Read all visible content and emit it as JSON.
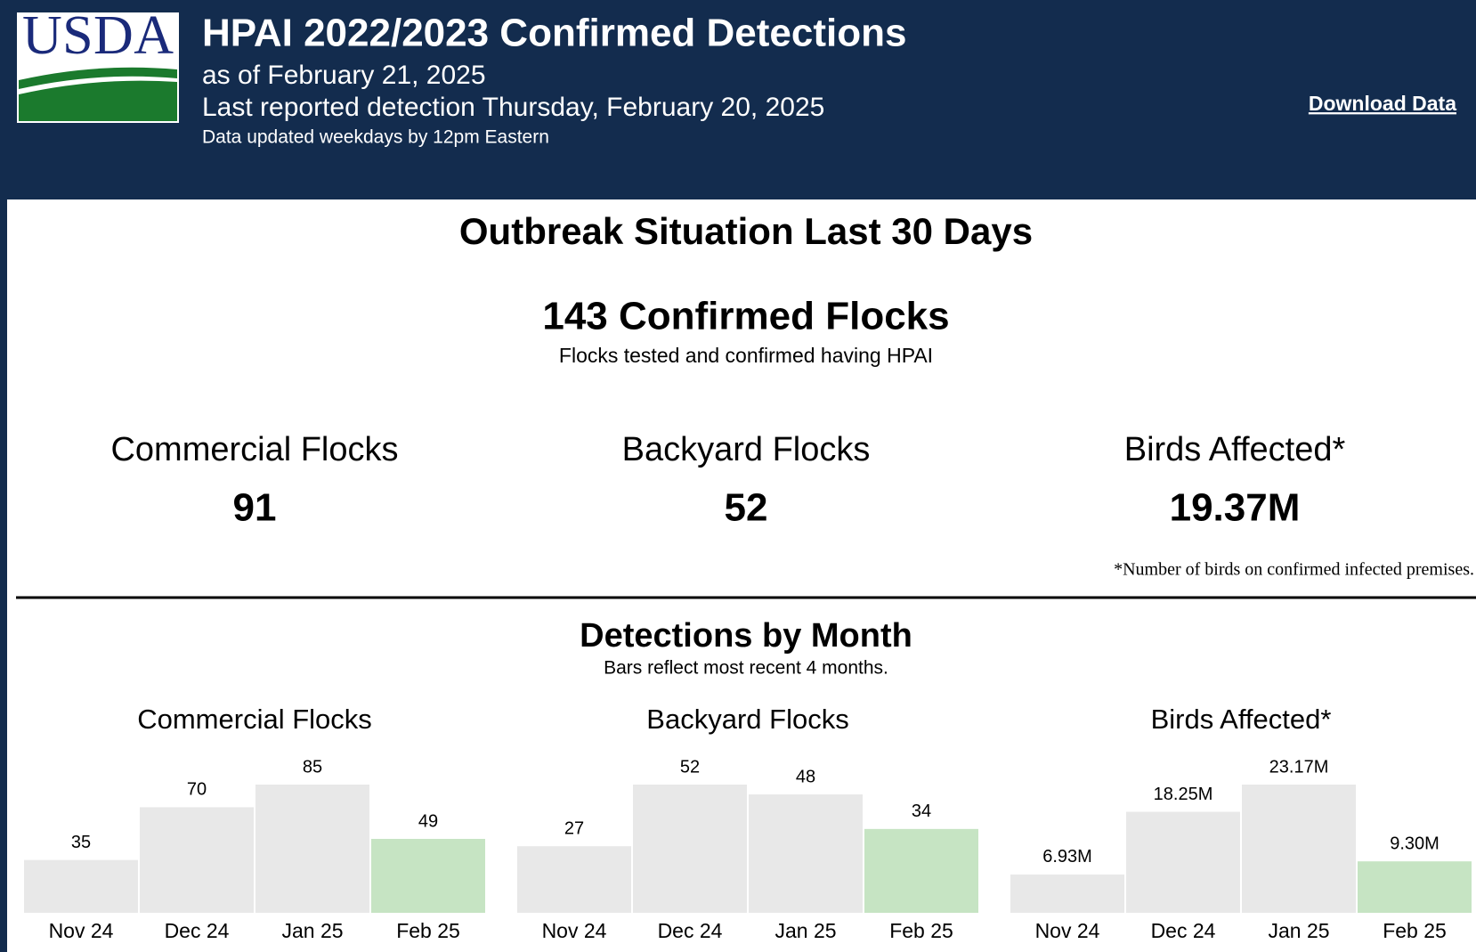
{
  "header": {
    "logo": "USDA",
    "title": "HPAI 2022/2023 Confirmed Detections",
    "as_of": "as of February 21, 2025",
    "last_reported": "Last reported detection Thursday, February 20, 2025",
    "update_note": "Data updated weekdays by 12pm Eastern",
    "download": "Download Data"
  },
  "summary": {
    "heading": "Outbreak Situation Last 30 Days",
    "total": "143 Confirmed Flocks",
    "total_note": "Flocks tested and confirmed having HPAI",
    "stats": [
      {
        "label": "Commercial Flocks",
        "value": "91"
      },
      {
        "label": "Backyard Flocks",
        "value": "52"
      },
      {
        "label": "Birds Affected*",
        "value": "19.37M"
      }
    ],
    "footnote": "*Number of birds on confirmed infected premises."
  },
  "monthly": {
    "heading": "Detections by Month",
    "note": "Bars reflect most recent 4 months.",
    "charts": [
      {
        "type": "bar",
        "title": "Commercial Flocks",
        "categories": [
          "Nov 24",
          "Dec 24",
          "Jan 25",
          "Feb 25"
        ],
        "values": [
          35,
          70,
          85,
          49
        ],
        "colors": [
          "#e8e8e8",
          "#e8e8e8",
          "#e8e8e8",
          "#c6e4c3"
        ]
      },
      {
        "type": "bar",
        "title": "Backyard Flocks",
        "categories": [
          "Nov 24",
          "Dec 24",
          "Jan 25",
          "Feb 25"
        ],
        "values": [
          27,
          52,
          48,
          34
        ],
        "colors": [
          "#e8e8e8",
          "#e8e8e8",
          "#e8e8e8",
          "#c6e4c3"
        ]
      },
      {
        "type": "bar",
        "title": "Birds Affected*",
        "categories": [
          "Nov 24",
          "Dec 24",
          "Jan 25",
          "Feb 25"
        ],
        "values": [
          6930000,
          18250000,
          23170000,
          9300000
        ],
        "value_labels": [
          "6.93M",
          "18.25M",
          "23.17M",
          "9.30M"
        ],
        "colors": [
          "#e8e8e8",
          "#e8e8e8",
          "#e8e8e8",
          "#c6e4c3"
        ]
      }
    ]
  }
}
